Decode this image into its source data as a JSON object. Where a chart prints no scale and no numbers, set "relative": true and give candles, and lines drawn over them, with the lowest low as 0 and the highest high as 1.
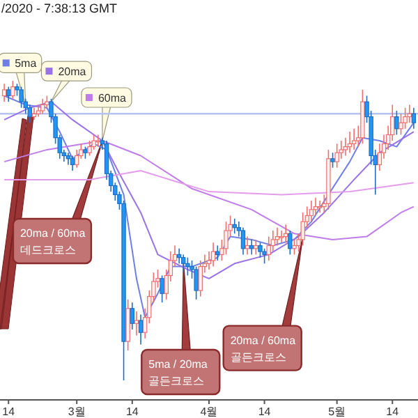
{
  "chart_data": {
    "type": "candlestick",
    "title": "/2020 - 7:38:13 GMT",
    "relative": true,
    "xlim": [
      "2020-02-12",
      "2020-05-20"
    ],
    "legend": "top left",
    "xticks": [
      {
        "value": "2020-02-14",
        "label": "14"
      },
      {
        "value": "2020-03-01",
        "label": "3월"
      },
      {
        "value": "2020-03-14",
        "label": "14"
      },
      {
        "value": "2020-04-01",
        "label": "4월"
      },
      {
        "value": "2020-04-14",
        "label": "14"
      },
      {
        "value": "2020-05-01",
        "label": "5월"
      },
      {
        "value": "2020-05-14",
        "label": "14"
      }
    ],
    "x": [
      "2020-02-13",
      "2020-02-14",
      "2020-02-15",
      "2020-02-16",
      "2020-02-17",
      "2020-02-18",
      "2020-02-19",
      "2020-02-20",
      "2020-02-21",
      "2020-02-22",
      "2020-02-23",
      "2020-02-24",
      "2020-02-25",
      "2020-02-26",
      "2020-02-27",
      "2020-02-28",
      "2020-02-29",
      "2020-03-01",
      "2020-03-02",
      "2020-03-03",
      "2020-03-04",
      "2020-03-05",
      "2020-03-06",
      "2020-03-07",
      "2020-03-08",
      "2020-03-09",
      "2020-03-10",
      "2020-03-11",
      "2020-03-12",
      "2020-03-13",
      "2020-03-14",
      "2020-03-15",
      "2020-03-16",
      "2020-03-17",
      "2020-03-18",
      "2020-03-19",
      "2020-03-20",
      "2020-03-21",
      "2020-03-22",
      "2020-03-23",
      "2020-03-24",
      "2020-03-25",
      "2020-03-26",
      "2020-03-27",
      "2020-03-28",
      "2020-03-29",
      "2020-03-30",
      "2020-03-31",
      "2020-04-01",
      "2020-04-02",
      "2020-04-03",
      "2020-04-04",
      "2020-04-05",
      "2020-04-06",
      "2020-04-07",
      "2020-04-08",
      "2020-04-09",
      "2020-04-10",
      "2020-04-11",
      "2020-04-12",
      "2020-04-13",
      "2020-04-14",
      "2020-04-15",
      "2020-04-16",
      "2020-04-17",
      "2020-04-18",
      "2020-04-19",
      "2020-04-20",
      "2020-04-21",
      "2020-04-22",
      "2020-04-23",
      "2020-04-24",
      "2020-04-25",
      "2020-04-26",
      "2020-04-27",
      "2020-04-28",
      "2020-04-29",
      "2020-04-30",
      "2020-05-01",
      "2020-05-02",
      "2020-05-03",
      "2020-05-04",
      "2020-05-05",
      "2020-05-06",
      "2020-05-07",
      "2020-05-08",
      "2020-05-09",
      "2020-05-10",
      "2020-05-11",
      "2020-05-12",
      "2020-05-13",
      "2020-05-14",
      "2020-05-15",
      "2020-05-16",
      "2020-05-17",
      "2020-05-18",
      "2020-05-19"
    ],
    "ohlc": [
      [
        0.95,
        0.99,
        0.93,
        0.97
      ],
      [
        0.97,
        0.98,
        0.93,
        0.95
      ],
      [
        0.95,
        1.0,
        0.94,
        0.98
      ],
      [
        0.98,
        0.99,
        0.95,
        0.97
      ],
      [
        0.97,
        0.98,
        0.91,
        0.93
      ],
      [
        0.93,
        0.94,
        0.89,
        0.91
      ],
      [
        0.91,
        0.92,
        0.86,
        0.88
      ],
      [
        0.88,
        0.91,
        0.87,
        0.89
      ],
      [
        0.89,
        0.92,
        0.88,
        0.9
      ],
      [
        0.9,
        0.94,
        0.89,
        0.92
      ],
      [
        0.92,
        0.95,
        0.91,
        0.93
      ],
      [
        0.93,
        0.94,
        0.86,
        0.88
      ],
      [
        0.88,
        0.89,
        0.79,
        0.81
      ],
      [
        0.81,
        0.82,
        0.74,
        0.76
      ],
      [
        0.76,
        0.77,
        0.73,
        0.75
      ],
      [
        0.75,
        0.76,
        0.72,
        0.74
      ],
      [
        0.74,
        0.75,
        0.7,
        0.72
      ],
      [
        0.72,
        0.77,
        0.71,
        0.75
      ],
      [
        0.75,
        0.79,
        0.74,
        0.77
      ],
      [
        0.77,
        0.78,
        0.74,
        0.76
      ],
      [
        0.76,
        0.8,
        0.75,
        0.78
      ],
      [
        0.78,
        0.82,
        0.77,
        0.8
      ],
      [
        0.8,
        0.82,
        0.78,
        0.8
      ],
      [
        0.8,
        0.81,
        0.77,
        0.79
      ],
      [
        0.79,
        0.8,
        0.67,
        0.69
      ],
      [
        0.69,
        0.7,
        0.63,
        0.65
      ],
      [
        0.65,
        0.66,
        0.6,
        0.62
      ],
      [
        0.62,
        0.63,
        0.57,
        0.59
      ],
      [
        0.59,
        0.6,
        0.0,
        0.13
      ],
      [
        0.13,
        0.27,
        0.1,
        0.24
      ],
      [
        0.24,
        0.26,
        0.17,
        0.19
      ],
      [
        0.19,
        0.23,
        0.15,
        0.2
      ],
      [
        0.2,
        0.22,
        0.12,
        0.16
      ],
      [
        0.16,
        0.24,
        0.14,
        0.21
      ],
      [
        0.21,
        0.3,
        0.19,
        0.28
      ],
      [
        0.28,
        0.36,
        0.26,
        0.33
      ],
      [
        0.33,
        0.37,
        0.31,
        0.34
      ],
      [
        0.34,
        0.35,
        0.26,
        0.29
      ],
      [
        0.29,
        0.37,
        0.27,
        0.35
      ],
      [
        0.35,
        0.43,
        0.33,
        0.4
      ],
      [
        0.4,
        0.45,
        0.38,
        0.42
      ],
      [
        0.42,
        0.44,
        0.39,
        0.41
      ],
      [
        0.41,
        0.42,
        0.36,
        0.39
      ],
      [
        0.39,
        0.41,
        0.35,
        0.38
      ],
      [
        0.38,
        0.4,
        0.34,
        0.37
      ],
      [
        0.37,
        0.38,
        0.27,
        0.3
      ],
      [
        0.3,
        0.4,
        0.28,
        0.38
      ],
      [
        0.38,
        0.42,
        0.36,
        0.39
      ],
      [
        0.39,
        0.43,
        0.37,
        0.4
      ],
      [
        0.4,
        0.46,
        0.38,
        0.43
      ],
      [
        0.43,
        0.45,
        0.4,
        0.42
      ],
      [
        0.42,
        0.47,
        0.4,
        0.44
      ],
      [
        0.44,
        0.53,
        0.42,
        0.5
      ],
      [
        0.5,
        0.55,
        0.48,
        0.52
      ],
      [
        0.52,
        0.54,
        0.49,
        0.51
      ],
      [
        0.51,
        0.53,
        0.48,
        0.5
      ],
      [
        0.5,
        0.51,
        0.42,
        0.44
      ],
      [
        0.44,
        0.48,
        0.42,
        0.45
      ],
      [
        0.45,
        0.47,
        0.42,
        0.44
      ],
      [
        0.44,
        0.47,
        0.42,
        0.45
      ],
      [
        0.45,
        0.46,
        0.41,
        0.43
      ],
      [
        0.43,
        0.44,
        0.39,
        0.42
      ],
      [
        0.42,
        0.48,
        0.4,
        0.45
      ],
      [
        0.45,
        0.5,
        0.43,
        0.47
      ],
      [
        0.47,
        0.51,
        0.45,
        0.48
      ],
      [
        0.48,
        0.5,
        0.46,
        0.48
      ],
      [
        0.48,
        0.52,
        0.46,
        0.49
      ],
      [
        0.49,
        0.5,
        0.42,
        0.44
      ],
      [
        0.44,
        0.47,
        0.42,
        0.45
      ],
      [
        0.45,
        0.49,
        0.43,
        0.47
      ],
      [
        0.47,
        0.56,
        0.45,
        0.53
      ],
      [
        0.53,
        0.58,
        0.51,
        0.55
      ],
      [
        0.55,
        0.6,
        0.53,
        0.57
      ],
      [
        0.57,
        0.61,
        0.55,
        0.58
      ],
      [
        0.58,
        0.6,
        0.56,
        0.58
      ],
      [
        0.58,
        0.62,
        0.56,
        0.59
      ],
      [
        0.59,
        0.77,
        0.57,
        0.74
      ],
      [
        0.74,
        0.76,
        0.71,
        0.73
      ],
      [
        0.73,
        0.79,
        0.71,
        0.76
      ],
      [
        0.76,
        0.8,
        0.74,
        0.77
      ],
      [
        0.77,
        0.81,
        0.75,
        0.78
      ],
      [
        0.78,
        0.83,
        0.76,
        0.79
      ],
      [
        0.79,
        0.84,
        0.77,
        0.8
      ],
      [
        0.8,
        0.85,
        0.78,
        0.81
      ],
      [
        0.81,
        0.97,
        0.79,
        0.93
      ],
      [
        0.93,
        0.95,
        0.86,
        0.88
      ],
      [
        0.88,
        0.9,
        0.72,
        0.75
      ],
      [
        0.75,
        0.77,
        0.62,
        0.72
      ],
      [
        0.72,
        0.79,
        0.7,
        0.76
      ],
      [
        0.76,
        0.82,
        0.74,
        0.79
      ],
      [
        0.79,
        0.85,
        0.77,
        0.82
      ],
      [
        0.82,
        0.92,
        0.8,
        0.88
      ],
      [
        0.88,
        0.9,
        0.82,
        0.84
      ],
      [
        0.84,
        0.89,
        0.82,
        0.86
      ],
      [
        0.86,
        0.91,
        0.84,
        0.88
      ],
      [
        0.88,
        0.92,
        0.86,
        0.89
      ],
      [
        0.89,
        0.91,
        0.84,
        0.86
      ]
    ],
    "series": [
      {
        "name": "5ma",
        "type": "line",
        "color": "#6f7fe6",
        "x": [
          "2020-02-13",
          "2020-02-18",
          "2020-02-23",
          "2020-02-26",
          "2020-02-29",
          "2020-03-05",
          "2020-03-08",
          "2020-03-12",
          "2020-03-15",
          "2020-03-17",
          "2020-03-20",
          "2020-03-23",
          "2020-03-28",
          "2020-04-03",
          "2020-04-06",
          "2020-04-11",
          "2020-04-16",
          "2020-04-21",
          "2020-04-25",
          "2020-04-29",
          "2020-05-04",
          "2020-05-07",
          "2020-05-11",
          "2020-05-15",
          "2020-05-19"
        ],
        "values": [
          0.95,
          0.92,
          0.91,
          0.83,
          0.74,
          0.79,
          0.77,
          0.62,
          0.34,
          0.21,
          0.29,
          0.38,
          0.38,
          0.41,
          0.48,
          0.47,
          0.45,
          0.47,
          0.53,
          0.62,
          0.73,
          0.81,
          0.8,
          0.78,
          0.86
        ]
      },
      {
        "name": "20ma",
        "type": "line",
        "color": "#9a72e8",
        "x": [
          "2020-02-13",
          "2020-02-19",
          "2020-02-24",
          "2020-02-29",
          "2020-03-07",
          "2020-03-11",
          "2020-03-16",
          "2020-03-20",
          "2020-03-27",
          "2020-04-01",
          "2020-04-07",
          "2020-04-15",
          "2020-04-22",
          "2020-04-28",
          "2020-05-05",
          "2020-05-11",
          "2020-05-19"
        ],
        "values": [
          0.87,
          0.91,
          0.93,
          0.87,
          0.8,
          0.69,
          0.56,
          0.42,
          0.37,
          0.34,
          0.39,
          0.42,
          0.48,
          0.56,
          0.67,
          0.76,
          0.83
        ]
      },
      {
        "name": "60ma",
        "type": "line",
        "color": "#c07ce8",
        "x": [
          "2020-02-13",
          "2020-02-23",
          "2020-03-07",
          "2020-03-16",
          "2020-03-28",
          "2020-04-11",
          "2020-04-21",
          "2020-04-30",
          "2020-05-08",
          "2020-05-16",
          "2020-05-19"
        ],
        "values": [
          0.73,
          0.77,
          0.8,
          0.75,
          0.64,
          0.57,
          0.49,
          0.47,
          0.48,
          0.56,
          0.58
        ]
      },
      {
        "type": "line",
        "color": "#e49ceb",
        "x": [
          "2020-02-13",
          "2020-03-04",
          "2020-03-16",
          "2020-04-01",
          "2020-04-18",
          "2020-05-04",
          "2020-05-19"
        ],
        "values": [
          0.67,
          0.67,
          0.7,
          0.63,
          0.62,
          0.63,
          0.66
        ]
      }
    ],
    "ref_lines": [
      {
        "axis": "y",
        "value": 0.89,
        "color": "#b6c3f2"
      }
    ],
    "annotations": [
      {
        "text": "20ma / 60ma\n데드크로스",
        "x": "2020-03-07",
        "y": 0.8
      },
      {
        "text": "5ma / 20ma\n골든크로스",
        "x": "2020-03-26",
        "y": 0.4
      },
      {
        "text": "20ma / 60ma\n골든크로스",
        "x": "2020-04-23",
        "y": 0.48
      }
    ]
  }
}
